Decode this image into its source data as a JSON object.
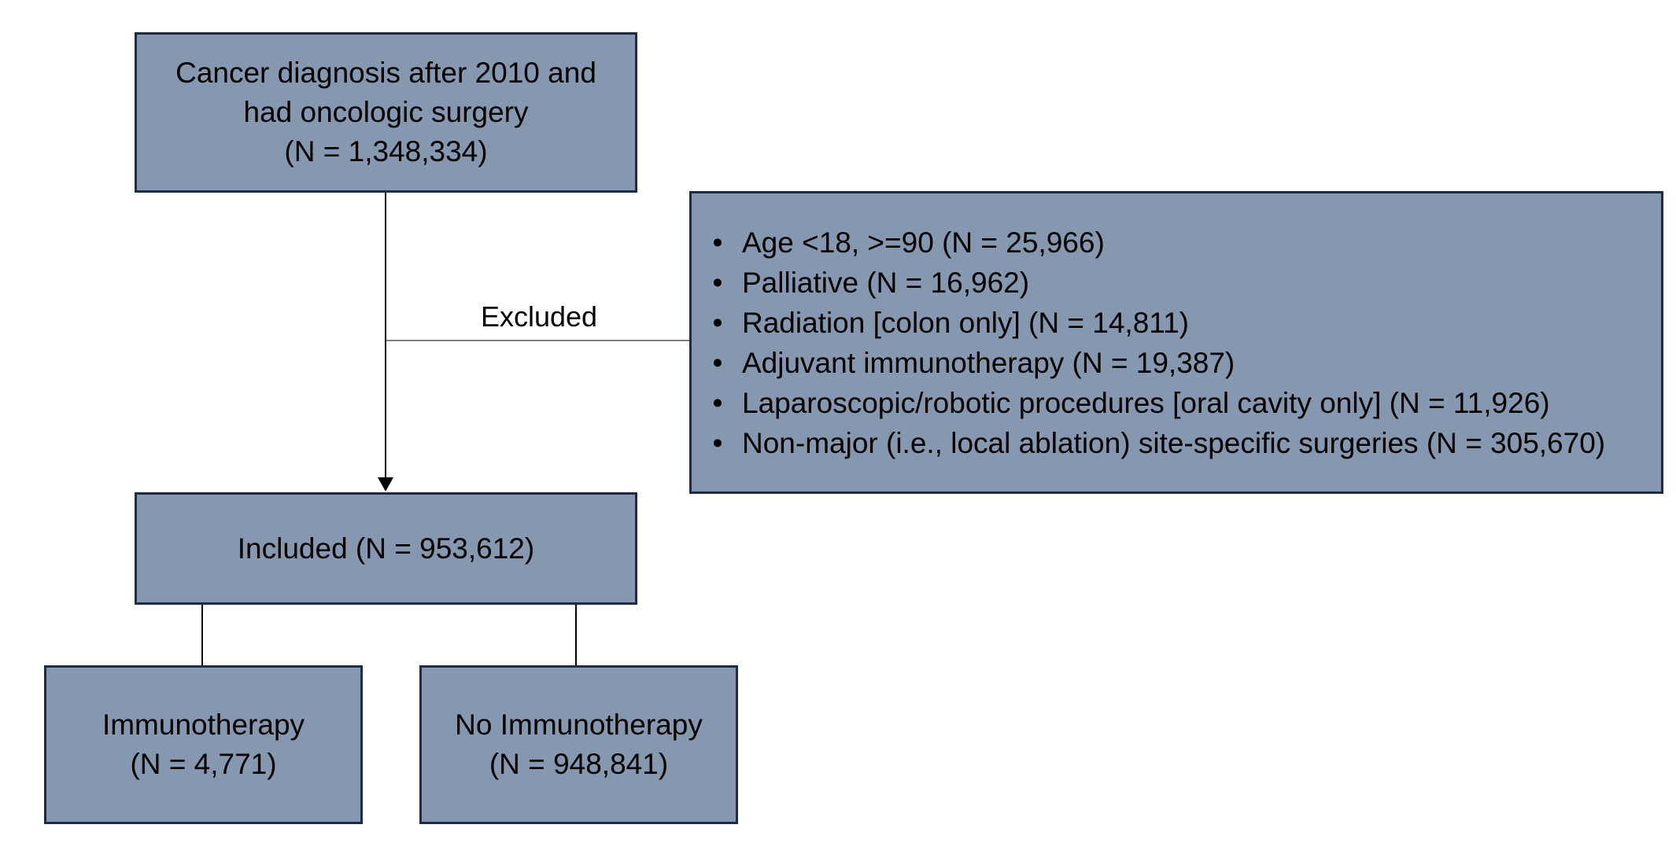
{
  "diagram": {
    "top_box": {
      "lines": [
        "Cancer diagnosis after 2010 and",
        "had oncologic surgery",
        "(N = 1,348,334)"
      ]
    },
    "excluded_label": "Excluded",
    "exclusion_box": {
      "bullet": "•",
      "items": [
        "Age <18, >=90 (N = 25,966)",
        "Palliative (N = 16,962)",
        "Radiation [colon only] (N = 14,811)",
        "Adjuvant immunotherapy (N = 19,387)",
        "Laparoscopic/robotic procedures [oral cavity only] (N = 11,926)",
        "Non-major (i.e., local ablation) site-specific surgeries (N = 305,670)"
      ]
    },
    "included_box": {
      "label": "Included (N = 953,612)"
    },
    "immunotherapy_box": {
      "lines": [
        "Immunotherapy",
        "(N = 4,771)"
      ]
    },
    "no_immunotherapy_box": {
      "lines": [
        "No Immunotherapy",
        "(N = 948,841)"
      ]
    },
    "colors": {
      "box_fill": "#8697b0",
      "box_border": "#1f2a44",
      "connector": "#000000"
    }
  }
}
